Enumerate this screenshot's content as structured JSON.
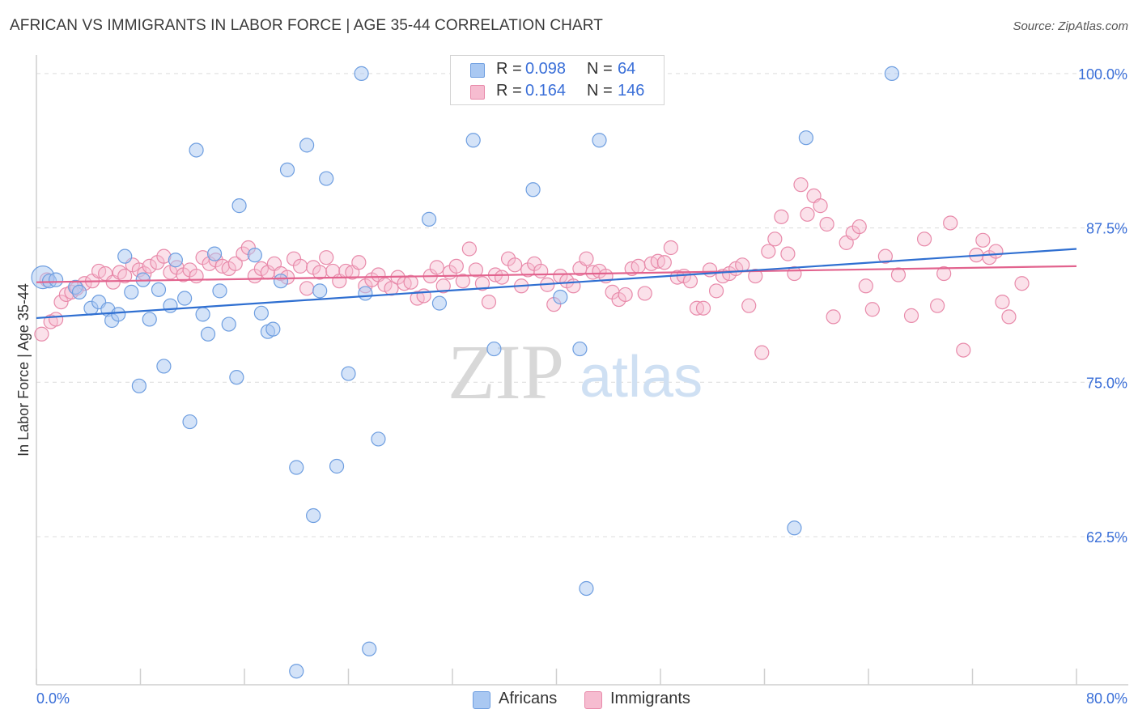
{
  "title": "AFRICAN VS IMMIGRANTS IN LABOR FORCE | AGE 35-44 CORRELATION CHART",
  "source": "Source: ZipAtlas.com",
  "watermark": {
    "zip": "ZIP",
    "atlas": "atlas"
  },
  "colors": {
    "blue_fill": "#a9c8f2",
    "blue_stroke": "#6e9ee0",
    "blue_line": "#2f6fd1",
    "pink_fill": "#f6bcd0",
    "pink_stroke": "#e88aaa",
    "pink_line": "#e2638e",
    "tick_text": "#3a6fd8",
    "grid": "#dcdcdc"
  },
  "legend_top": [
    {
      "r_label": "R =",
      "r_value": "0.098",
      "n_label": "N =",
      "n_value": "64"
    },
    {
      "r_label": "R =",
      "r_value": "0.164",
      "n_label": "N =",
      "n_value": "146"
    }
  ],
  "legend_bottom": [
    {
      "label": "Africans"
    },
    {
      "label": "Immigrants"
    }
  ],
  "chart_data": {
    "type": "scatter",
    "title": "AFRICAN VS IMMIGRANTS IN LABOR FORCE | AGE 35-44 CORRELATION CHART",
    "xlabel": "",
    "ylabel": "In Labor Force | Age 35-44",
    "xlim": [
      0,
      80
    ],
    "ylim": [
      50.5,
      101.5
    ],
    "x_tick_labels": [
      "0.0%",
      "80.0%"
    ],
    "y_ticks": [
      62.5,
      75.0,
      87.5,
      100.0
    ],
    "y_tick_labels": [
      "62.5%",
      "75.0%",
      "87.5%",
      "100.0%"
    ],
    "grid": "horizontal dashed",
    "legend_placement": "top-center and bottom",
    "series": [
      {
        "name": "Africans",
        "r": 0.098,
        "n": 64,
        "trend": {
          "x": [
            0,
            80
          ],
          "y": [
            80.2,
            85.8
          ]
        },
        "points": [
          [
            0.5,
            83.5
          ],
          [
            1.0,
            83.2
          ],
          [
            1.5,
            83.3
          ],
          [
            3.0,
            82.7
          ],
          [
            3.3,
            82.3
          ],
          [
            4.2,
            81.0
          ],
          [
            4.8,
            81.5
          ],
          [
            5.5,
            80.9
          ],
          [
            5.8,
            80.0
          ],
          [
            6.3,
            80.5
          ],
          [
            6.8,
            85.2
          ],
          [
            7.3,
            82.3
          ],
          [
            7.9,
            74.7
          ],
          [
            8.2,
            83.3
          ],
          [
            8.7,
            80.1
          ],
          [
            9.4,
            82.5
          ],
          [
            9.8,
            76.3
          ],
          [
            10.3,
            81.2
          ],
          [
            10.7,
            84.9
          ],
          [
            11.4,
            81.8
          ],
          [
            11.8,
            71.8
          ],
          [
            12.3,
            93.8
          ],
          [
            12.8,
            80.5
          ],
          [
            13.2,
            78.9
          ],
          [
            13.7,
            85.4
          ],
          [
            14.1,
            82.4
          ],
          [
            14.8,
            79.7
          ],
          [
            15.4,
            75.4
          ],
          [
            15.6,
            89.3
          ],
          [
            16.8,
            85.3
          ],
          [
            17.3,
            80.6
          ],
          [
            17.8,
            79.1
          ],
          [
            18.2,
            79.3
          ],
          [
            18.8,
            83.2
          ],
          [
            19.3,
            92.2
          ],
          [
            20.0,
            68.1
          ],
          [
            20.8,
            94.2
          ],
          [
            21.3,
            64.2
          ],
          [
            21.8,
            82.4
          ],
          [
            22.3,
            91.5
          ],
          [
            23.1,
            68.2
          ],
          [
            24.0,
            75.7
          ],
          [
            25.0,
            100.0
          ],
          [
            25.3,
            82.2
          ],
          [
            25.6,
            53.4
          ],
          [
            26.3,
            70.4
          ],
          [
            30.2,
            88.2
          ],
          [
            31.0,
            81.4
          ],
          [
            32.8,
            100.0
          ],
          [
            33.6,
            94.6
          ],
          [
            35.2,
            77.7
          ],
          [
            38.2,
            90.6
          ],
          [
            40.3,
            81.9
          ],
          [
            41.8,
            77.7
          ],
          [
            42.3,
            58.3
          ],
          [
            43.3,
            94.6
          ],
          [
            58.3,
            63.2
          ],
          [
            59.2,
            94.8
          ],
          [
            65.8,
            100.0
          ],
          [
            20.0,
            51.6
          ]
        ]
      },
      {
        "name": "Immigrants",
        "r": 0.164,
        "n": 146,
        "trend": {
          "x": [
            0,
            80
          ],
          "y": [
            83.1,
            84.4
          ]
        },
        "points": [
          [
            0.4,
            78.9
          ],
          [
            0.8,
            83.3
          ],
          [
            1.1,
            79.9
          ],
          [
            1.5,
            80.1
          ],
          [
            1.9,
            81.5
          ],
          [
            2.3,
            82.1
          ],
          [
            2.7,
            82.3
          ],
          [
            3.1,
            82.6
          ],
          [
            3.7,
            83.0
          ],
          [
            4.3,
            83.2
          ],
          [
            4.8,
            84.0
          ],
          [
            5.3,
            83.8
          ],
          [
            5.9,
            83.1
          ],
          [
            6.4,
            83.9
          ],
          [
            6.8,
            83.6
          ],
          [
            7.4,
            84.5
          ],
          [
            7.9,
            84.1
          ],
          [
            8.3,
            83.8
          ],
          [
            8.7,
            84.4
          ],
          [
            9.3,
            84.7
          ],
          [
            9.8,
            85.2
          ],
          [
            10.3,
            83.9
          ],
          [
            10.8,
            84.3
          ],
          [
            11.3,
            83.7
          ],
          [
            11.8,
            84.1
          ],
          [
            12.3,
            83.6
          ],
          [
            12.8,
            85.1
          ],
          [
            13.3,
            84.6
          ],
          [
            13.8,
            84.9
          ],
          [
            14.3,
            84.4
          ],
          [
            14.8,
            84.2
          ],
          [
            15.3,
            84.6
          ],
          [
            15.9,
            85.4
          ],
          [
            16.3,
            85.9
          ],
          [
            16.8,
            83.6
          ],
          [
            17.3,
            84.2
          ],
          [
            17.8,
            83.9
          ],
          [
            18.3,
            84.6
          ],
          [
            18.8,
            83.8
          ],
          [
            19.3,
            83.5
          ],
          [
            19.8,
            85.0
          ],
          [
            20.3,
            84.4
          ],
          [
            20.8,
            82.6
          ],
          [
            21.3,
            84.3
          ],
          [
            21.8,
            83.9
          ],
          [
            22.3,
            85.1
          ],
          [
            22.8,
            84.0
          ],
          [
            23.3,
            83.2
          ],
          [
            23.8,
            84.0
          ],
          [
            24.3,
            83.9
          ],
          [
            24.8,
            84.7
          ],
          [
            25.3,
            82.8
          ],
          [
            25.8,
            83.3
          ],
          [
            26.3,
            83.7
          ],
          [
            26.8,
            82.9
          ],
          [
            27.3,
            82.6
          ],
          [
            27.8,
            83.5
          ],
          [
            28.3,
            83.0
          ],
          [
            28.8,
            83.1
          ],
          [
            29.3,
            81.8
          ],
          [
            29.8,
            82.0
          ],
          [
            30.3,
            83.6
          ],
          [
            30.8,
            84.3
          ],
          [
            31.3,
            82.8
          ],
          [
            31.8,
            83.9
          ],
          [
            32.3,
            84.4
          ],
          [
            32.8,
            83.2
          ],
          [
            33.3,
            85.8
          ],
          [
            33.8,
            84.1
          ],
          [
            34.3,
            83.0
          ],
          [
            34.8,
            81.5
          ],
          [
            35.3,
            83.7
          ],
          [
            35.8,
            83.5
          ],
          [
            36.3,
            85.0
          ],
          [
            36.8,
            84.5
          ],
          [
            37.3,
            82.8
          ],
          [
            37.8,
            84.1
          ],
          [
            38.3,
            84.6
          ],
          [
            38.8,
            84.0
          ],
          [
            39.3,
            82.9
          ],
          [
            39.8,
            81.3
          ],
          [
            40.3,
            83.6
          ],
          [
            40.8,
            83.2
          ],
          [
            41.3,
            82.8
          ],
          [
            41.8,
            84.2
          ],
          [
            42.3,
            85.0
          ],
          [
            42.8,
            83.9
          ],
          [
            43.3,
            84.0
          ],
          [
            43.8,
            83.6
          ],
          [
            44.3,
            82.3
          ],
          [
            44.8,
            81.7
          ],
          [
            45.3,
            82.1
          ],
          [
            45.8,
            84.2
          ],
          [
            46.3,
            84.4
          ],
          [
            46.8,
            82.2
          ],
          [
            47.3,
            84.6
          ],
          [
            47.8,
            84.8
          ],
          [
            48.3,
            84.7
          ],
          [
            48.8,
            85.9
          ],
          [
            49.3,
            83.5
          ],
          [
            49.8,
            83.6
          ],
          [
            50.3,
            83.2
          ],
          [
            50.8,
            81.0
          ],
          [
            51.3,
            81.0
          ],
          [
            51.8,
            84.1
          ],
          [
            52.3,
            82.4
          ],
          [
            52.8,
            83.6
          ],
          [
            53.3,
            83.8
          ],
          [
            53.8,
            84.2
          ],
          [
            54.3,
            84.5
          ],
          [
            54.8,
            81.2
          ],
          [
            55.3,
            83.6
          ],
          [
            55.8,
            77.4
          ],
          [
            56.3,
            85.6
          ],
          [
            56.8,
            86.6
          ],
          [
            57.3,
            88.4
          ],
          [
            57.8,
            85.4
          ],
          [
            58.3,
            83.8
          ],
          [
            58.8,
            91.0
          ],
          [
            59.3,
            88.6
          ],
          [
            59.8,
            90.1
          ],
          [
            60.3,
            89.3
          ],
          [
            60.8,
            87.8
          ],
          [
            61.3,
            80.3
          ],
          [
            62.3,
            86.3
          ],
          [
            62.8,
            87.1
          ],
          [
            63.3,
            87.6
          ],
          [
            63.8,
            82.8
          ],
          [
            64.3,
            80.9
          ],
          [
            65.3,
            85.2
          ],
          [
            66.3,
            83.7
          ],
          [
            67.3,
            80.4
          ],
          [
            68.3,
            86.6
          ],
          [
            69.3,
            81.2
          ],
          [
            69.8,
            83.8
          ],
          [
            70.3,
            87.9
          ],
          [
            71.3,
            77.6
          ],
          [
            72.3,
            85.3
          ],
          [
            72.8,
            86.5
          ],
          [
            73.3,
            85.1
          ],
          [
            73.8,
            85.6
          ],
          [
            74.3,
            81.5
          ],
          [
            74.8,
            80.3
          ],
          [
            75.8,
            83.0
          ]
        ]
      }
    ]
  }
}
